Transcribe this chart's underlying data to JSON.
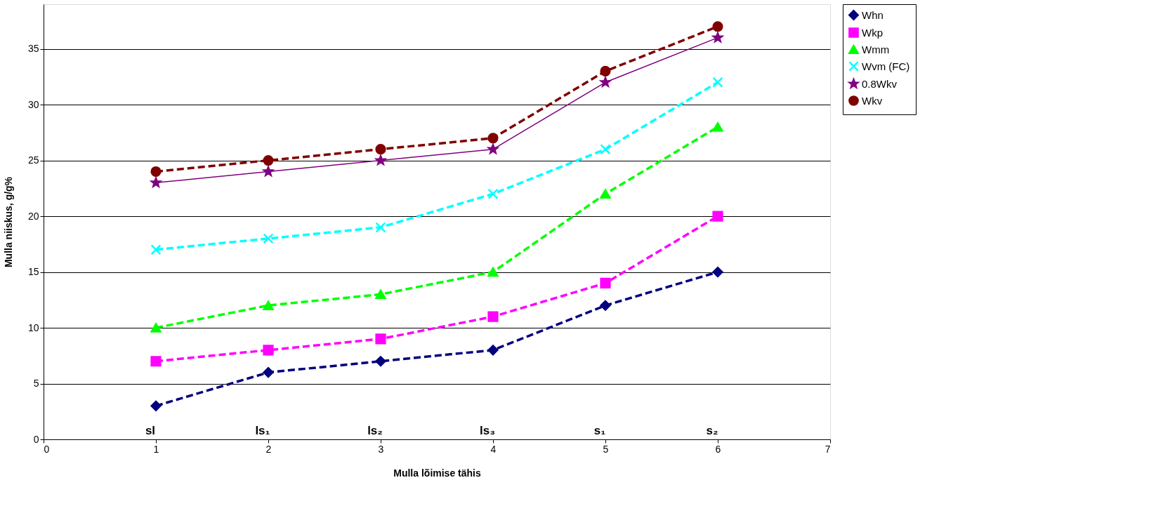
{
  "chart_data": {
    "type": "line",
    "xlabel": "Mulla lõimise tähis",
    "ylabel": "Mulla niiskus, g/g%",
    "x": [
      1,
      2,
      3,
      4,
      5,
      6
    ],
    "series": [
      {
        "name": "Whn",
        "color": "#000080",
        "marker": "diamond",
        "line_style": "dashed",
        "values": [
          3,
          6,
          7,
          8,
          12,
          15
        ]
      },
      {
        "name": "Wkp",
        "color": "#ff00ff",
        "marker": "square",
        "line_style": "dashed",
        "values": [
          7,
          8,
          9,
          11,
          14,
          20
        ]
      },
      {
        "name": "Wmm",
        "color": "#00ff00",
        "marker": "triangle",
        "line_style": "dashed",
        "values": [
          10,
          12,
          13,
          15,
          22,
          28
        ]
      },
      {
        "name": "Wvm (FC)",
        "color": "#00ffff",
        "marker": "cross",
        "line_style": "dashed",
        "values": [
          17,
          18,
          19,
          22,
          26,
          32
        ]
      },
      {
        "name": "0.8Wkv",
        "color": "#800080",
        "marker": "star",
        "line_style": "solid",
        "values": [
          23,
          24,
          25,
          26,
          32,
          36
        ]
      },
      {
        "name": "Wkv",
        "color": "#800000",
        "marker": "circle",
        "line_style": "dashed",
        "values": [
          24,
          25,
          26,
          27,
          33,
          37
        ]
      }
    ],
    "xlim": [
      0,
      7
    ],
    "xticks": [
      0,
      1,
      2,
      3,
      4,
      5,
      6,
      7
    ],
    "ylim": [
      0,
      39
    ],
    "yticks": [
      0,
      5,
      10,
      15,
      20,
      25,
      30,
      35
    ],
    "grid": "y",
    "legend": "right",
    "annotations": [
      "sl",
      "ls₁",
      "ls₂",
      "ls₃",
      "s₁",
      "s₂"
    ]
  }
}
